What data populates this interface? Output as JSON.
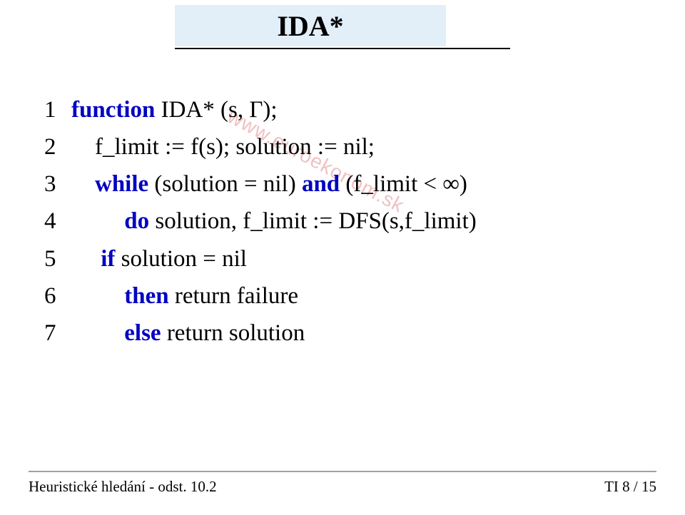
{
  "title": "IDA*",
  "title_box": {
    "bg": "#e2eef8",
    "underline_color": "#000000"
  },
  "keyword_color": "#0000c2",
  "text_color": "#000000",
  "background_color": "#ffffff",
  "font": {
    "body_family": "Times New Roman",
    "body_size_pt": 25,
    "title_size_pt": 30
  },
  "watermark": {
    "text": "www.euroekonom.sk",
    "color": "#e9a0a0",
    "rotation_deg": 28
  },
  "code": [
    {
      "n": "1",
      "parts": [
        {
          "t": "function",
          "kw": true
        },
        {
          "t": " IDA* (s, Γ);",
          "kw": false
        }
      ]
    },
    {
      "n": "2",
      "parts": [
        {
          "t": "    f_limit := f(s); solution := nil;",
          "kw": false
        }
      ]
    },
    {
      "n": "3",
      "parts": [
        {
          "t": "    ",
          "kw": false
        },
        {
          "t": "while",
          "kw": true
        },
        {
          "t": " (solution = nil) ",
          "kw": false
        },
        {
          "t": "and",
          "kw": true
        },
        {
          "t": " (f_limit < ∞)",
          "kw": false
        }
      ]
    },
    {
      "n": "4",
      "parts": [
        {
          "t": "         ",
          "kw": false
        },
        {
          "t": "do",
          "kw": true
        },
        {
          "t": " solution, f_limit := DFS(s,f_limit)",
          "kw": false
        }
      ]
    },
    {
      "n": "5",
      "parts": [
        {
          "t": "     ",
          "kw": false
        },
        {
          "t": "if",
          "kw": true
        },
        {
          "t": " solution = nil",
          "kw": false
        }
      ]
    },
    {
      "n": "6",
      "parts": [
        {
          "t": "         ",
          "kw": false
        },
        {
          "t": "then",
          "kw": true
        },
        {
          "t": " return failure",
          "kw": false
        }
      ]
    },
    {
      "n": "7",
      "parts": [
        {
          "t": "         ",
          "kw": false
        },
        {
          "t": "else",
          "kw": true
        },
        {
          "t": " return solution",
          "kw": false
        }
      ]
    }
  ],
  "footer": {
    "left": "Heuristické hledání - odst.  10.2",
    "right_prefix": "TI  ",
    "page_current": 8,
    "page_total": 15,
    "line_color": "#a0a0a0"
  }
}
